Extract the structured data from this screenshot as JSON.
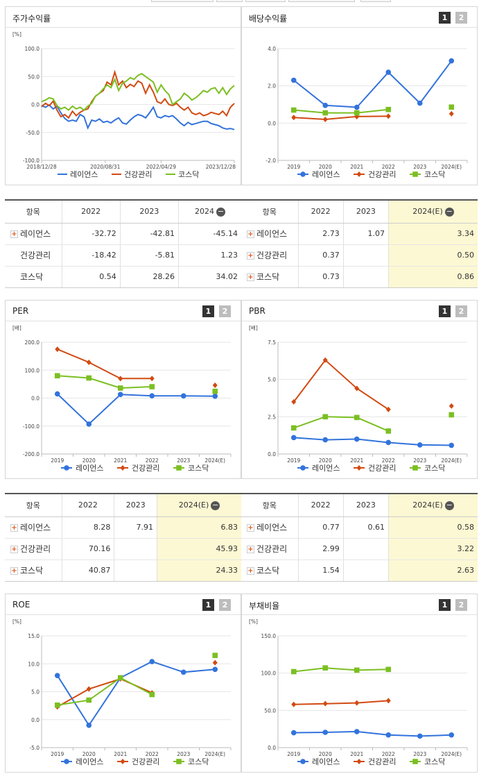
{
  "colors": {
    "s1": "#3273dc",
    "s2": "#d24a12",
    "s3": "#7bbf22"
  },
  "legend": [
    "레이언스",
    "건강관리",
    "코스닥"
  ],
  "pager": [
    "1",
    "2"
  ],
  "panels": {
    "p1": {
      "title": "주가수익률",
      "unit": "[%]"
    },
    "p2": {
      "title": "배당수익률",
      "unit": ""
    },
    "p3": {
      "title": "PER",
      "unit": "[배]"
    },
    "p4": {
      "title": "PBR",
      "unit": "[배]"
    },
    "p5": {
      "title": "ROE",
      "unit": "[%]"
    },
    "p6": {
      "title": "부채비율",
      "unit": "[%]"
    }
  },
  "tables": {
    "t1": {
      "headers": [
        "항목",
        "2022",
        "2023",
        "2024"
      ],
      "rows": [
        {
          "name": "레이언스",
          "plus": true,
          "v": [
            "-32.72",
            "-42.81",
            "-45.14"
          ]
        },
        {
          "name": "건강관리",
          "plus": false,
          "v": [
            "-18.42",
            "-5.81",
            "1.23"
          ]
        },
        {
          "name": "코스닥",
          "plus": false,
          "v": [
            "0.54",
            "28.26",
            "34.02"
          ]
        }
      ]
    },
    "t2": {
      "headers": [
        "항목",
        "2022",
        "2023",
        "2024(E)"
      ],
      "rows": [
        {
          "name": "레이언스",
          "plus": true,
          "v": [
            "2.73",
            "1.07",
            "3.34"
          ]
        },
        {
          "name": "건강관리",
          "plus": true,
          "v": [
            "0.37",
            "",
            "0.50"
          ]
        },
        {
          "name": "코스닥",
          "plus": true,
          "v": [
            "0.73",
            "",
            "0.86"
          ]
        }
      ]
    },
    "t3": {
      "headers": [
        "항목",
        "2022",
        "2023",
        "2024(E)"
      ],
      "rows": [
        {
          "name": "레이언스",
          "plus": true,
          "v": [
            "8.28",
            "7.91",
            "6.83"
          ]
        },
        {
          "name": "건강관리",
          "plus": true,
          "v": [
            "70.16",
            "",
            "45.93"
          ]
        },
        {
          "name": "코스닥",
          "plus": true,
          "v": [
            "40.87",
            "",
            "24.33"
          ]
        }
      ]
    },
    "t4": {
      "headers": [
        "항목",
        "2022",
        "2023",
        "2024(E)"
      ],
      "rows": [
        {
          "name": "레이언스",
          "plus": true,
          "v": [
            "0.77",
            "0.61",
            "0.58"
          ]
        },
        {
          "name": "건강관리",
          "plus": true,
          "v": [
            "2.99",
            "",
            "3.22"
          ]
        },
        {
          "name": "코스닥",
          "plus": true,
          "v": [
            "1.54",
            "",
            "2.63"
          ]
        }
      ]
    }
  },
  "chart_data": [
    {
      "id": "p1",
      "type": "line",
      "title": "주가수익률",
      "ylabel": "[%]",
      "ylim": [
        -100,
        100
      ],
      "yticks": [
        "100.0",
        "50.0",
        "0.0",
        "-50.0",
        "-100.0"
      ],
      "xticks": [
        "2018/12/28",
        "2020/08/31",
        "2022/04/29",
        "2023/12/28"
      ],
      "xrange": [
        0,
        100
      ],
      "xtick_pos": [
        0,
        33,
        62,
        100
      ],
      "series": [
        {
          "name": "레이언스",
          "x": [
            0,
            2,
            4,
            6,
            8,
            10,
            12,
            14,
            16,
            18,
            20,
            22,
            24,
            26,
            28,
            30,
            32,
            34,
            36,
            38,
            40,
            42,
            44,
            46,
            48,
            50,
            52,
            54,
            56,
            58,
            60,
            62,
            64,
            66,
            68,
            70,
            72,
            74,
            76,
            78,
            80,
            82,
            84,
            86,
            88,
            90,
            92,
            94,
            96,
            98,
            100
          ],
          "y": [
            -2,
            -5,
            -1,
            -8,
            -3,
            -15,
            -25,
            -30,
            -28,
            -30,
            -18,
            -22,
            -42,
            -28,
            -30,
            -26,
            -32,
            -30,
            -33,
            -28,
            -24,
            -33,
            -35,
            -28,
            -22,
            -18,
            -20,
            -24,
            -15,
            -5,
            -22,
            -24,
            -20,
            -22,
            -20,
            -26,
            -33,
            -38,
            -32,
            -36,
            -34,
            -32,
            -30,
            -30,
            -34,
            -36,
            -38,
            -42,
            -44,
            -43,
            -45
          ]
        },
        {
          "name": "건강관리",
          "x": [
            0,
            2,
            4,
            6,
            8,
            10,
            12,
            14,
            16,
            18,
            20,
            22,
            24,
            26,
            28,
            30,
            32,
            34,
            36,
            38,
            40,
            42,
            44,
            46,
            48,
            50,
            52,
            54,
            56,
            58,
            60,
            62,
            64,
            66,
            68,
            70,
            72,
            74,
            76,
            78,
            80,
            82,
            84,
            86,
            88,
            90,
            92,
            94,
            96,
            98,
            100
          ],
          "y": [
            -4,
            2,
            -2,
            6,
            -10,
            -22,
            -18,
            -24,
            -12,
            -20,
            -14,
            -10,
            -8,
            5,
            15,
            20,
            25,
            40,
            35,
            58,
            35,
            42,
            30,
            36,
            32,
            42,
            38,
            20,
            35,
            22,
            5,
            2,
            10,
            0,
            -2,
            2,
            -5,
            -10,
            -5,
            -15,
            -18,
            -15,
            -20,
            -18,
            -14,
            -16,
            -18,
            -12,
            -20,
            -5,
            2
          ]
        },
        {
          "name": "코스닥",
          "x": [
            0,
            2,
            4,
            6,
            8,
            10,
            12,
            14,
            16,
            18,
            20,
            22,
            24,
            26,
            28,
            30,
            32,
            34,
            36,
            38,
            40,
            42,
            44,
            46,
            48,
            50,
            52,
            54,
            56,
            58,
            60,
            62,
            64,
            66,
            68,
            70,
            72,
            74,
            76,
            78,
            80,
            82,
            84,
            86,
            88,
            90,
            92,
            94,
            96,
            98,
            100
          ],
          "y": [
            5,
            8,
            12,
            10,
            -2,
            -8,
            -5,
            -10,
            -3,
            -8,
            -5,
            -10,
            -3,
            2,
            15,
            20,
            28,
            35,
            30,
            45,
            25,
            38,
            42,
            48,
            45,
            52,
            55,
            50,
            45,
            40,
            22,
            35,
            25,
            18,
            0,
            5,
            10,
            20,
            15,
            8,
            12,
            18,
            25,
            22,
            28,
            30,
            20,
            30,
            18,
            28,
            34
          ]
        }
      ]
    },
    {
      "id": "p2",
      "type": "line",
      "title": "배당수익률",
      "ylim": [
        -2,
        4
      ],
      "yticks": [
        "4.0",
        "2.0",
        "0.0",
        "-2.0"
      ],
      "categories": [
        "2019",
        "2020",
        "2021",
        "2022",
        "2023",
        "2024(E)"
      ],
      "series": [
        {
          "name": "레이언스",
          "values": [
            2.3,
            0.95,
            0.85,
            2.73,
            1.07,
            3.34
          ]
        },
        {
          "name": "건강관리",
          "values": [
            0.3,
            0.2,
            0.35,
            0.37,
            null,
            0.5
          ]
        },
        {
          "name": "코스닥",
          "values": [
            0.7,
            0.55,
            0.55,
            0.73,
            null,
            0.86
          ]
        }
      ]
    },
    {
      "id": "p3",
      "type": "line",
      "title": "PER",
      "ylabel": "[배]",
      "ylim": [
        -200,
        200
      ],
      "yticks": [
        "200.0",
        "100.0",
        "0.0",
        "-100.0",
        "-200.0"
      ],
      "categories": [
        "2019",
        "2020",
        "2021",
        "2022",
        "2023",
        "2024(E)"
      ],
      "series": [
        {
          "name": "레이언스",
          "values": [
            15,
            -93,
            13,
            8.28,
            7.91,
            6.83
          ]
        },
        {
          "name": "건강관리",
          "values": [
            175,
            128,
            70,
            70.16,
            null,
            45.93
          ]
        },
        {
          "name": "코스닥",
          "values": [
            80,
            72,
            36,
            40.87,
            null,
            24.33
          ]
        }
      ]
    },
    {
      "id": "p4",
      "type": "line",
      "title": "PBR",
      "ylabel": "[배]",
      "ylim": [
        0,
        7.5
      ],
      "yticks": [
        "7.5",
        "5.0",
        "2.5",
        "0.0"
      ],
      "categories": [
        "2019",
        "2020",
        "2021",
        "2022",
        "2023",
        "2024(E)"
      ],
      "series": [
        {
          "name": "레이언스",
          "values": [
            1.1,
            0.95,
            1.0,
            0.77,
            0.61,
            0.58
          ]
        },
        {
          "name": "건강관리",
          "values": [
            3.5,
            6.3,
            4.4,
            2.99,
            null,
            3.22
          ]
        },
        {
          "name": "코스닥",
          "values": [
            1.75,
            2.5,
            2.45,
            1.54,
            null,
            2.63
          ]
        }
      ]
    },
    {
      "id": "p5",
      "type": "line",
      "title": "ROE",
      "ylabel": "[%]",
      "ylim": [
        -5,
        15
      ],
      "yticks": [
        "15.0",
        "10.0",
        "5.0",
        "0.0",
        "-5.0"
      ],
      "categories": [
        "2019",
        "2020",
        "2021",
        "2022",
        "2023",
        "2024(E)"
      ],
      "series": [
        {
          "name": "레이언스",
          "values": [
            7.9,
            -1.0,
            7.5,
            10.4,
            8.5,
            9.0
          ]
        },
        {
          "name": "건강관리",
          "values": [
            2.3,
            5.5,
            7.3,
            4.8,
            null,
            10.2
          ]
        },
        {
          "name": "코스닥",
          "values": [
            2.6,
            3.5,
            7.5,
            4.5,
            null,
            11.5
          ]
        }
      ]
    },
    {
      "id": "p6",
      "type": "line",
      "title": "부채비율",
      "ylabel": "[%]",
      "ylim": [
        0,
        150
      ],
      "yticks": [
        "150.0",
        "100.0",
        "50.0",
        "0.0"
      ],
      "categories": [
        "2019",
        "2020",
        "2021",
        "2022",
        "2023",
        "2024(E)"
      ],
      "series": [
        {
          "name": "레이언스",
          "values": [
            20,
            20.5,
            21.5,
            17,
            15.5,
            17
          ]
        },
        {
          "name": "건강관리",
          "values": [
            58,
            59,
            60,
            63,
            null,
            null
          ]
        },
        {
          "name": "코스닥",
          "values": [
            102,
            107,
            104,
            105,
            null,
            null
          ]
        }
      ]
    }
  ]
}
